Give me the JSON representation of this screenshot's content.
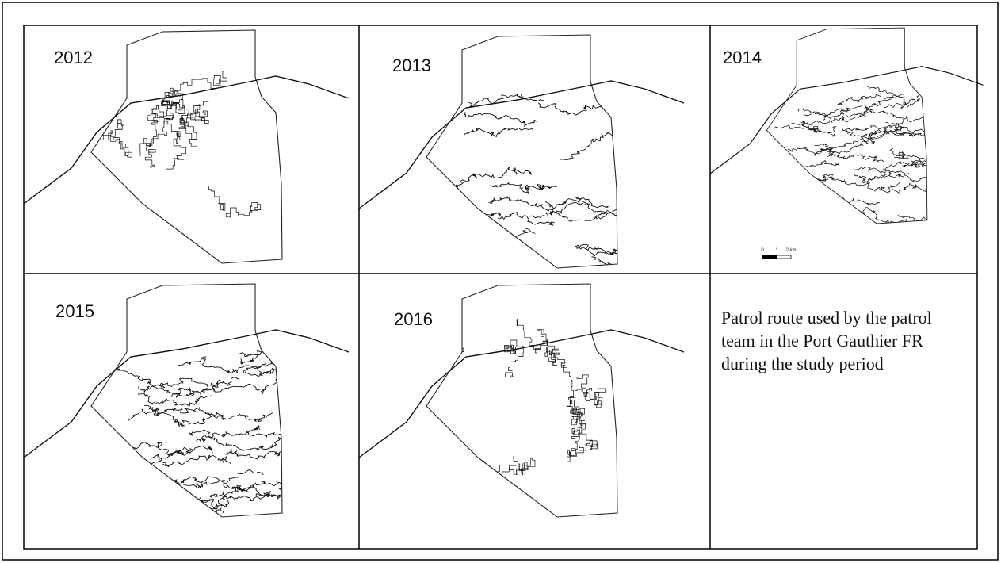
{
  "panels": [
    {
      "label": "2012"
    },
    {
      "label": "2013"
    },
    {
      "label": "2014"
    },
    {
      "label": "2015"
    },
    {
      "label": "2016"
    }
  ],
  "scale_bar": {
    "labels": [
      "0",
      "1",
      "2 km"
    ]
  },
  "caption": "Patrol route used by the patrol team in the Port Gauthier FR during the study period"
}
